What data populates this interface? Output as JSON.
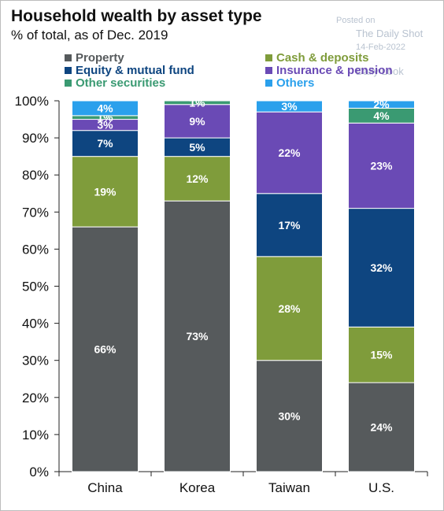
{
  "title": "Household wealth by asset type",
  "subtitle": "% of total, as of Dec. 2019",
  "watermark": {
    "posted_on": "Posted on",
    "source": "The Daily Shot",
    "date": "14-Feb-2022",
    "brand": "Daily Look"
  },
  "chart_data": {
    "type": "bar",
    "stacked": true,
    "categories": [
      "China",
      "Korea",
      "Taiwan",
      "U.S."
    ],
    "ylim": [
      0,
      100
    ],
    "yticks": [
      "0%",
      "10%",
      "20%",
      "30%",
      "40%",
      "50%",
      "60%",
      "70%",
      "80%",
      "90%",
      "100%"
    ],
    "legend_position": "top",
    "series": [
      {
        "name": "Property",
        "color": "#565a5c",
        "values": [
          66,
          73,
          30,
          24
        ],
        "labels": [
          "66%",
          "73%",
          "30%",
          "24%"
        ]
      },
      {
        "name": "Cash & deposits",
        "color": "#7f9c3b",
        "values": [
          19,
          12,
          28,
          15
        ],
        "labels": [
          "19%",
          "12%",
          "28%",
          "15%"
        ]
      },
      {
        "name": "Equity & mutual fund",
        "color": "#0e4580",
        "values": [
          7,
          5,
          17,
          32
        ],
        "labels": [
          "7%",
          "5%",
          "17%",
          "32%"
        ]
      },
      {
        "name": "Insurance & pension",
        "color": "#6a4ab5",
        "values": [
          3,
          9,
          22,
          23
        ],
        "labels": [
          "3%",
          "9%",
          "22%",
          "23%"
        ]
      },
      {
        "name": "Other securities",
        "color": "#3a9a72",
        "values": [
          1,
          1,
          0,
          4
        ],
        "labels": [
          "1%",
          "1%",
          "",
          "4%"
        ]
      },
      {
        "name": "Others",
        "color": "#2aa0ec",
        "values": [
          4,
          0,
          3,
          2
        ],
        "labels": [
          "4%",
          "",
          "3%",
          "2%"
        ]
      }
    ]
  }
}
